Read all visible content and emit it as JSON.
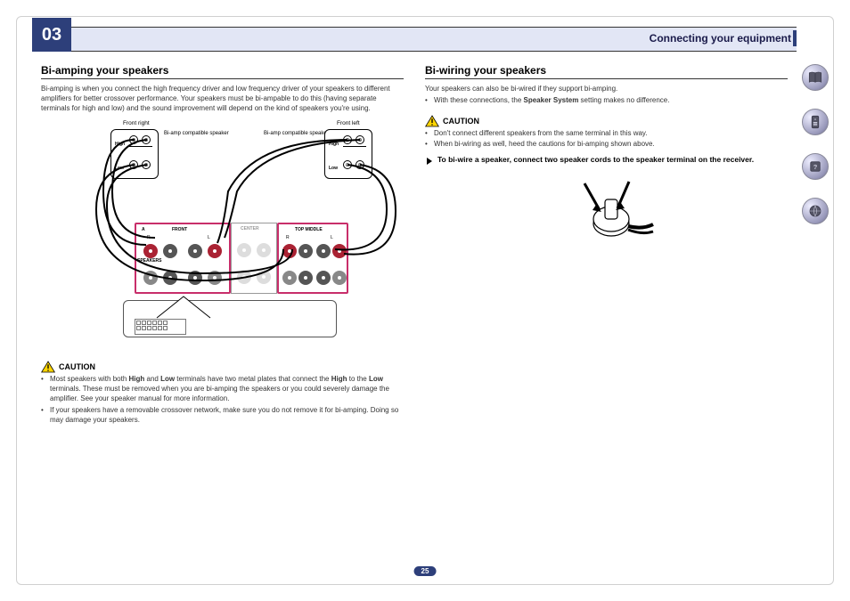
{
  "chapter": {
    "number": "03",
    "title": "Connecting your equipment"
  },
  "page_number": "25",
  "colors": {
    "header_bg": "#e2e6f5",
    "chapter_bg": "#2d3f7a",
    "highlight": "#c82e6a",
    "terminal_red": "#a23",
    "terminal_dark": "#555",
    "terminal_gray": "#bbb"
  },
  "left_col": {
    "heading": "Bi-amping your speakers",
    "intro": "Bi-amping is when you connect the high frequency driver and low frequency driver of your speakers to different amplifiers for better crossover performance. Your speakers must be bi-ampable to do this (having separate terminals for high and low) and the sound improvement will depend on the kind of speakers you're using.",
    "diagram": {
      "front_right": "Front right",
      "front_left": "Front left",
      "compat": "Bi-amp compatible speaker",
      "high": "High",
      "low": "Low",
      "front": "FRONT",
      "center": "CENTER",
      "topmid": "TOP MIDDLE",
      "speakers": "SPEAKERS",
      "a": "A",
      "r": "R",
      "l": "L"
    },
    "caution_label": "CAUTION",
    "cautions": [
      "Most speakers with both <b>High</b> and <b>Low</b> terminals have two metal plates that connect the <b>High</b> to the <b>Low</b> terminals. These must be removed when you are bi-amping the speakers or you could severely damage the amplifier. See your speaker manual for more information.",
      "If your speakers have a removable crossover network, make sure you do not remove it for bi-amping. Doing so may damage your speakers."
    ]
  },
  "right_col": {
    "heading": "Bi-wiring your speakers",
    "intro": "Your speakers can also be bi-wired if they support bi-amping.",
    "intro_bullets": [
      "With these connections, the <b>Speaker System</b> setting makes no difference."
    ],
    "caution_label": "CAUTION",
    "cautions": [
      "Don't connect different speakers from the same terminal in this way.",
      "When bi-wiring as well, heed the cautions for bi-amping shown above."
    ],
    "instruction": "To bi-wire a speaker, connect two speaker cords to the speaker terminal on the receiver."
  },
  "sidebar_icons": [
    "book-icon",
    "remote-icon",
    "help-icon",
    "network-icon"
  ]
}
